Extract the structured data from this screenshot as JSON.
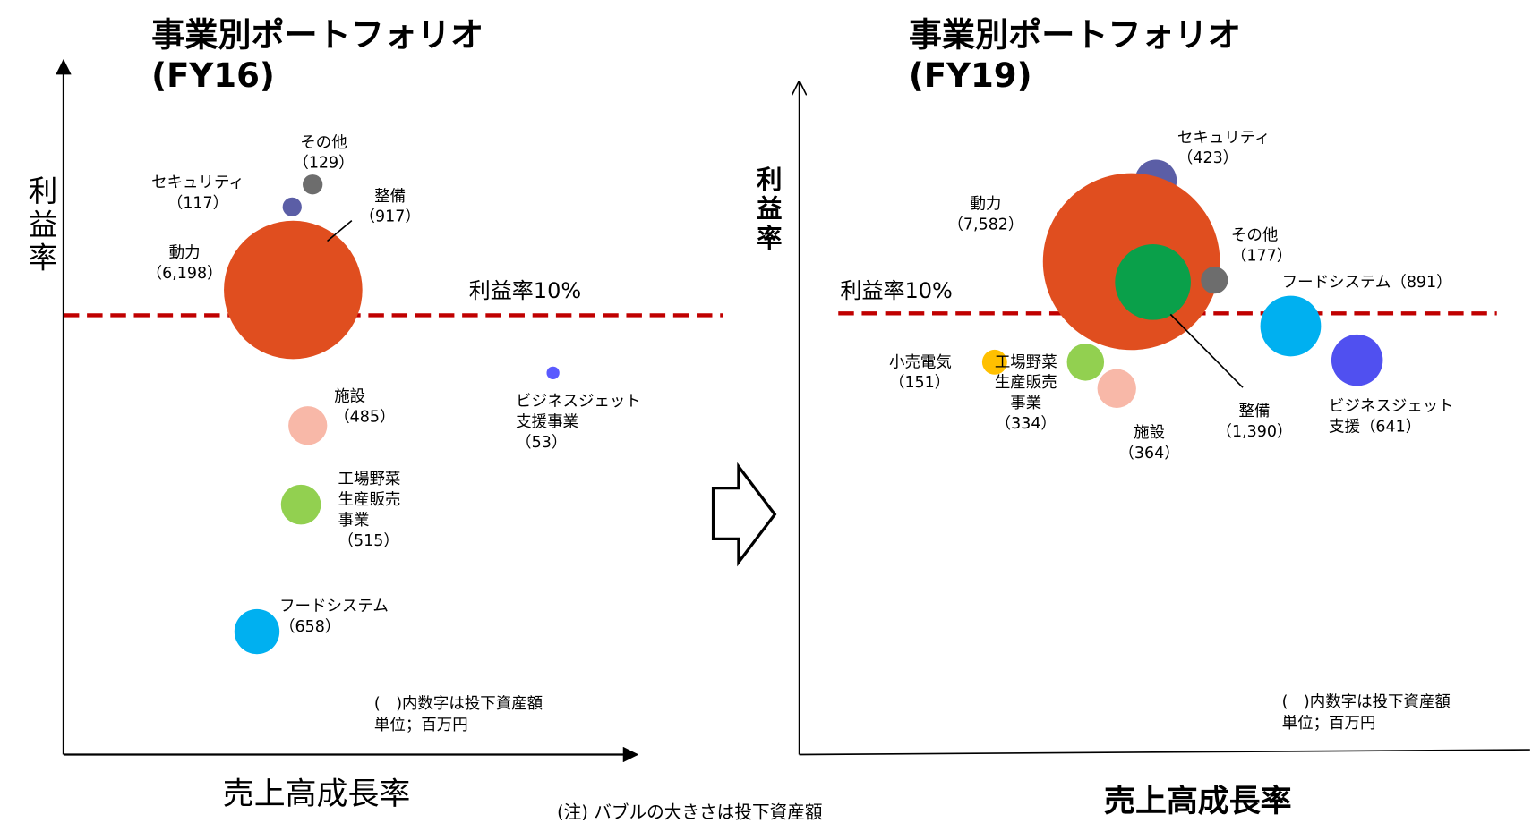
{
  "chart_data": [
    {
      "type": "bubble",
      "title": "事業別ポートフォリオ\n(FY16)",
      "xlabel": "売上高成長率",
      "ylabel": "利益率",
      "reference_label": "利益率10%",
      "reference_color": "#c00000",
      "note": "(　)内数字は投下資産額\n単位；百万円",
      "categories": [
        "その他",
        "セキュリティ",
        "整備",
        "動力",
        "施設",
        "工場野菜\n生産販売\n事業",
        "フードシステム",
        "ビジネスジェット\n支援事業"
      ],
      "values": [
        129,
        117,
        917,
        6198,
        485,
        515,
        658,
        53
      ],
      "value_labels": [
        "（129）",
        "（117）",
        "（917）",
        "（6,198）",
        "（485）",
        "（515）",
        "（658）",
        "（53）"
      ],
      "colors": [
        "#6d6d6d",
        "#5b5ea6",
        "#0aa04a",
        "#e04e1f",
        "#f8b8a8",
        "#92d050",
        "#00b0f0",
        "#5a5aff"
      ]
    },
    {
      "type": "bubble",
      "title": "事業別ポートフォリオ\n(FY19)",
      "xlabel": "売上高成長率",
      "ylabel": "利益率",
      "reference_label": "利益率10%",
      "reference_color": "#c00000",
      "note": "(　)内数字は投下資産額\n単位；百万円",
      "categories": [
        "セキュリティ",
        "動力",
        "その他",
        "フードシステム",
        "小売電気",
        "工場野菜\n生産販売\n事業",
        "施設",
        "整備",
        "ビジネスジェット\n支援"
      ],
      "values": [
        423,
        7582,
        177,
        891,
        151,
        334,
        364,
        1390,
        641
      ],
      "value_labels": [
        "（423）",
        "（7,582）",
        "（177）",
        "（891）",
        "（151）",
        "（334）",
        "（364）",
        "（1,390）",
        "（641）"
      ],
      "colors": [
        "#5b5ea6",
        "#e04e1f",
        "#6d6d6d",
        "#00b0f0",
        "#ffc000",
        "#92d050",
        "#f8b8a8",
        "#0aa04a",
        "#5050f0"
      ]
    }
  ],
  "footnote": "(注) バブルの大きさは投下資産額"
}
